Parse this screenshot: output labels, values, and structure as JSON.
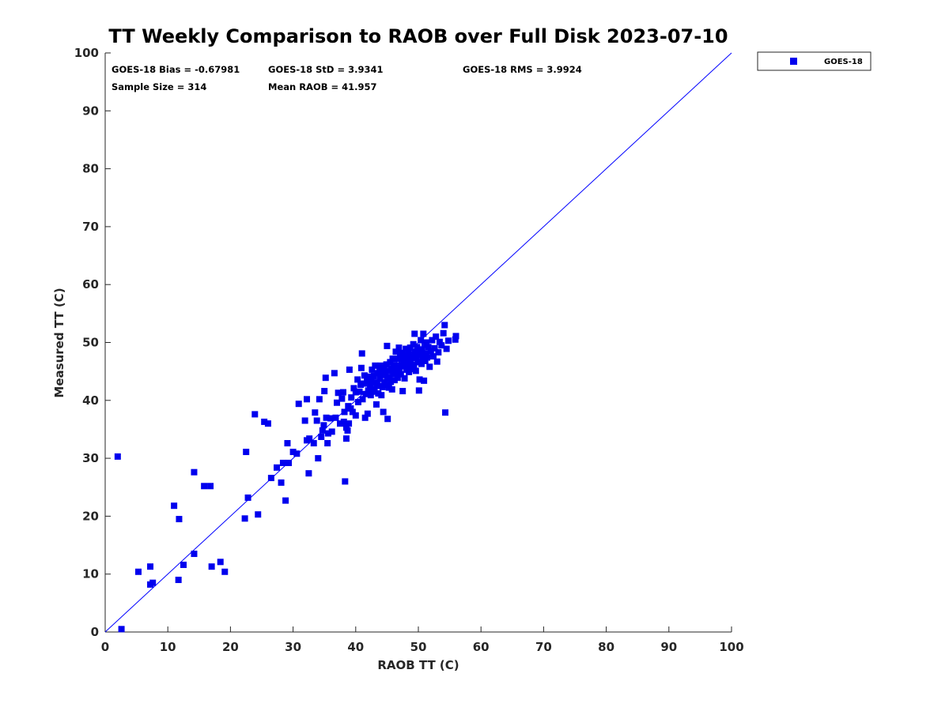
{
  "chart_data": {
    "type": "scatter",
    "title": "TT Weekly Comparison to RAOB over Full Disk 2023-07-10",
    "xlabel": "RAOB TT (C)",
    "ylabel": "Measured TT (C)",
    "xlim": [
      0,
      100
    ],
    "ylim": [
      0,
      100
    ],
    "xticks": [
      "0",
      "10",
      "20",
      "30",
      "40",
      "50",
      "60",
      "70",
      "80",
      "90",
      "100"
    ],
    "yticks": [
      "0",
      "10",
      "20",
      "30",
      "40",
      "50",
      "60",
      "70",
      "80",
      "90",
      "100"
    ],
    "grid": false,
    "legend_position": "top-right-outside",
    "reference_line": {
      "from": [
        0,
        0
      ],
      "to": [
        100,
        100
      ],
      "color": "#0000ff"
    },
    "stats": {
      "bias": "GOES-18 Bias = -0.67981",
      "std": "GOES-18 StD = 3.9341",
      "rms": "GOES-18 RMS = 3.9924",
      "sample_size": "Sample Size = 314",
      "mean_raob": "Mean RAOB = 41.957"
    },
    "series": [
      {
        "name": "GOES-18",
        "color": "#0000ee",
        "marker": "square",
        "points": [
          [
            2,
            30.3
          ],
          [
            2.6,
            0.5
          ],
          [
            5.3,
            10.4
          ],
          [
            7.2,
            11.3
          ],
          [
            7.2,
            8.2
          ],
          [
            7.6,
            8.5
          ],
          [
            11,
            21.8
          ],
          [
            11.7,
            9
          ],
          [
            11.8,
            19.5
          ],
          [
            12.5,
            11.6
          ],
          [
            14.2,
            27.6
          ],
          [
            14.2,
            13.5
          ],
          [
            15.8,
            25.2
          ],
          [
            16.8,
            25.2
          ],
          [
            17,
            11.3
          ],
          [
            18.4,
            12.1
          ],
          [
            19.1,
            10.4
          ],
          [
            22.3,
            19.6
          ],
          [
            22.5,
            31.1
          ],
          [
            22.8,
            23.2
          ],
          [
            23.9,
            37.6
          ],
          [
            24.4,
            20.3
          ],
          [
            25.4,
            36.3
          ],
          [
            26,
            36
          ],
          [
            26.5,
            26.6
          ],
          [
            27.4,
            28.4
          ],
          [
            28.1,
            25.8
          ],
          [
            28.4,
            29.2
          ],
          [
            28.8,
            22.7
          ],
          [
            29.1,
            32.6
          ],
          [
            29.3,
            29.2
          ],
          [
            30,
            31.1
          ],
          [
            30.6,
            30.8
          ],
          [
            30.9,
            39.4
          ],
          [
            31.9,
            36.5
          ],
          [
            32.2,
            33.1
          ],
          [
            32.2,
            40.2
          ],
          [
            32.5,
            27.4
          ],
          [
            32.6,
            33.4
          ],
          [
            33.3,
            32.6
          ],
          [
            33.5,
            37.9
          ],
          [
            33.8,
            36.5
          ],
          [
            34,
            30
          ],
          [
            34.2,
            40.2
          ],
          [
            34.5,
            33.7
          ],
          [
            34.7,
            34.8
          ],
          [
            34.9,
            35.7
          ],
          [
            35,
            41.6
          ],
          [
            35.2,
            43.9
          ],
          [
            35.3,
            37
          ],
          [
            35.5,
            32.6
          ],
          [
            35.6,
            34.3
          ],
          [
            36,
            36.9
          ],
          [
            36.2,
            34.6
          ],
          [
            36.6,
            44.7
          ],
          [
            36.8,
            37
          ],
          [
            37,
            39.6
          ],
          [
            37.2,
            41.3
          ],
          [
            37.5,
            36
          ],
          [
            37.8,
            40.3
          ],
          [
            38,
            41.4
          ],
          [
            38.1,
            36.3
          ],
          [
            38.2,
            38
          ],
          [
            38.3,
            26
          ],
          [
            38.5,
            35.3
          ],
          [
            38.5,
            33.4
          ],
          [
            38.7,
            34.8
          ],
          [
            38.8,
            39
          ],
          [
            38.9,
            36
          ],
          [
            39,
            45.3
          ],
          [
            39.2,
            38.6
          ],
          [
            39.3,
            40.5
          ],
          [
            39.5,
            38
          ],
          [
            39.7,
            42.1
          ],
          [
            40,
            41.4
          ],
          [
            40,
            37.4
          ],
          [
            40.3,
            43.6
          ],
          [
            40.4,
            39.7
          ],
          [
            40.6,
            41.5
          ],
          [
            40.8,
            42.7
          ],
          [
            40.9,
            45.6
          ],
          [
            41,
            48.1
          ],
          [
            41.1,
            40.2
          ],
          [
            41.3,
            42.9
          ],
          [
            41.4,
            44.3
          ],
          [
            41.5,
            37
          ],
          [
            41.6,
            41.1
          ],
          [
            41.8,
            43.4
          ],
          [
            41.9,
            37.7
          ],
          [
            42,
            41.7
          ],
          [
            42.1,
            44.1
          ],
          [
            42.3,
            42.5
          ],
          [
            42.4,
            40.9
          ],
          [
            42.5,
            43.5
          ],
          [
            42.6,
            45.3
          ],
          [
            42.8,
            42
          ],
          [
            42.9,
            44.2
          ],
          [
            43,
            41.5
          ],
          [
            43.1,
            46
          ],
          [
            43.2,
            43.1
          ],
          [
            43.3,
            39.3
          ],
          [
            43.4,
            42.8
          ],
          [
            43.5,
            44.7
          ],
          [
            43.6,
            41.2
          ],
          [
            43.7,
            42.5
          ],
          [
            43.8,
            45.1
          ],
          [
            43.9,
            43.7
          ],
          [
            44,
            46
          ],
          [
            44.1,
            40.9
          ],
          [
            44.2,
            44.4
          ],
          [
            44.3,
            42.3
          ],
          [
            44.4,
            38
          ],
          [
            44.5,
            45.5
          ],
          [
            44.6,
            43.1
          ],
          [
            44.7,
            44.6
          ],
          [
            44.8,
            42.6
          ],
          [
            44.9,
            46.2
          ],
          [
            45,
            43.7
          ],
          [
            45,
            49.4
          ],
          [
            45.1,
            36.8
          ],
          [
            45.2,
            45.1
          ],
          [
            45.3,
            42.2
          ],
          [
            45.4,
            44
          ],
          [
            45.5,
            46.6
          ],
          [
            45.6,
            43.2
          ],
          [
            45.7,
            45.5
          ],
          [
            45.8,
            41.9
          ],
          [
            45.9,
            47.2
          ],
          [
            46,
            44.6
          ],
          [
            46.1,
            46.1
          ],
          [
            46.2,
            43.5
          ],
          [
            46.3,
            45.6
          ],
          [
            46.4,
            48.4
          ],
          [
            46.5,
            44.9
          ],
          [
            46.6,
            47.2
          ],
          [
            46.7,
            43.9
          ],
          [
            46.8,
            46
          ],
          [
            46.9,
            49.1
          ],
          [
            47,
            45.2
          ],
          [
            47.1,
            47.4
          ],
          [
            47.2,
            44.5
          ],
          [
            47.3,
            46.8
          ],
          [
            47.4,
            48.2
          ],
          [
            47.5,
            41.6
          ],
          [
            47.6,
            45.9
          ],
          [
            47.7,
            47.5
          ],
          [
            47.8,
            43.8
          ],
          [
            47.9,
            46.5
          ],
          [
            48,
            48.9
          ],
          [
            48.1,
            45.3
          ],
          [
            48.2,
            47.8
          ],
          [
            48.3,
            46.1
          ],
          [
            48.4,
            48.3
          ],
          [
            48.5,
            44.9
          ],
          [
            48.6,
            47
          ],
          [
            48.7,
            49.1
          ],
          [
            48.8,
            46.4
          ],
          [
            48.9,
            48
          ],
          [
            49,
            45.4
          ],
          [
            49.1,
            47.3
          ],
          [
            49.2,
            49.7
          ],
          [
            49.3,
            46.1
          ],
          [
            49.4,
            51.5
          ],
          [
            49.5,
            48.4
          ],
          [
            49.6,
            45.1
          ],
          [
            49.7,
            47.6
          ],
          [
            49.8,
            49.2
          ],
          [
            49.9,
            46.6
          ],
          [
            50,
            48.8
          ],
          [
            50.1,
            41.7
          ],
          [
            50.2,
            43.6
          ],
          [
            50.3,
            47.9
          ],
          [
            50.4,
            50.4
          ],
          [
            50.5,
            46.3
          ],
          [
            50.6,
            48.6
          ],
          [
            50.7,
            47.2
          ],
          [
            50.8,
            51.5
          ],
          [
            50.9,
            43.4
          ],
          [
            51,
            49.6
          ],
          [
            51.1,
            46.8
          ],
          [
            51.2,
            48.1
          ],
          [
            51.3,
            50
          ],
          [
            51.4,
            47.4
          ],
          [
            51.6,
            49.2
          ],
          [
            51.8,
            45.8
          ],
          [
            52,
            48.5
          ],
          [
            52.2,
            50.4
          ],
          [
            52.4,
            47.6
          ],
          [
            52.6,
            49
          ],
          [
            52.8,
            51
          ],
          [
            53,
            46.7
          ],
          [
            53.2,
            48.3
          ],
          [
            53.4,
            50.1
          ],
          [
            53.7,
            49.5
          ],
          [
            54,
            51.6
          ],
          [
            54.2,
            53
          ],
          [
            54.3,
            37.9
          ],
          [
            54.5,
            48.9
          ],
          [
            54.8,
            50.3
          ],
          [
            55.9,
            50.5
          ],
          [
            56,
            51.1
          ]
        ]
      }
    ]
  }
}
